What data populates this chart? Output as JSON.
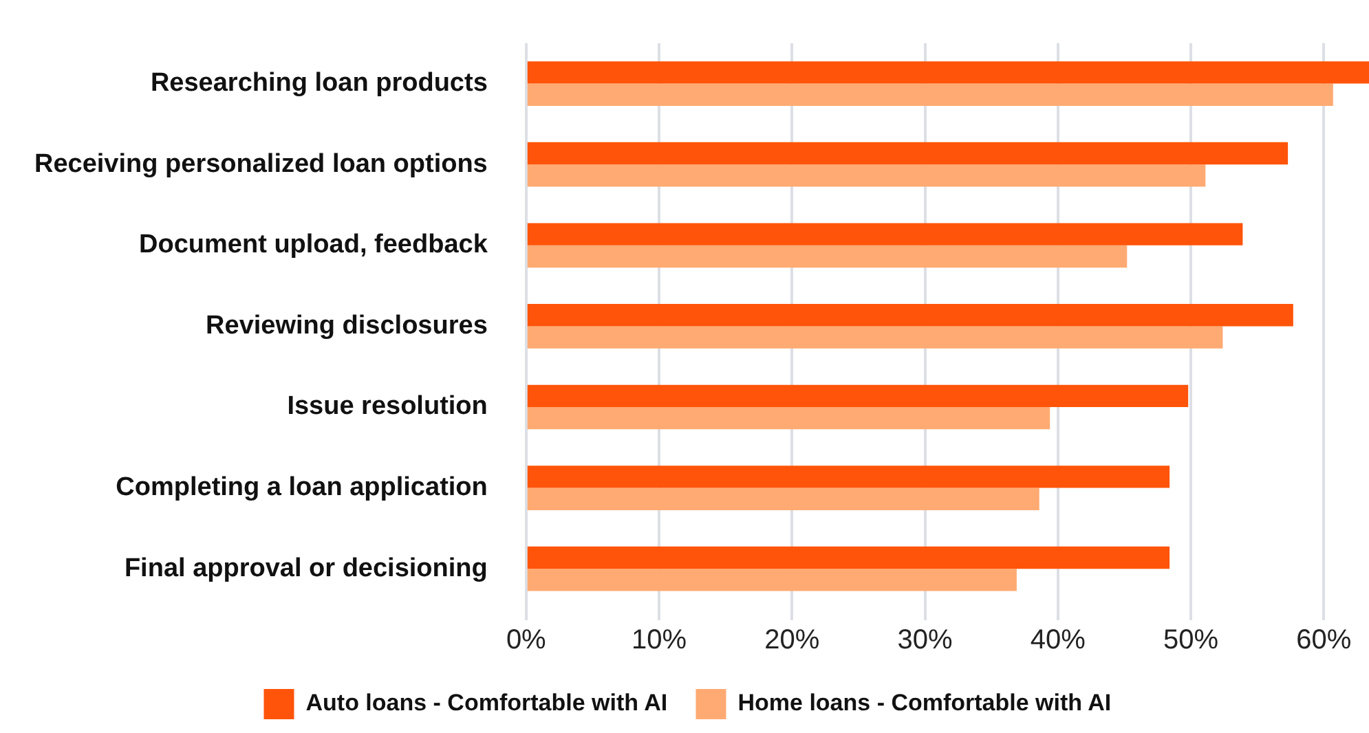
{
  "chart_data": {
    "type": "bar",
    "orientation": "horizontal",
    "categories": [
      "Researching loan products",
      "Receiving personalized loan options",
      "Document upload, feedback",
      "Reviewing disclosures",
      "Issue resolution",
      "Completing a loan application",
      "Final approval or decisioning"
    ],
    "series": [
      {
        "name": "Auto loans - Comfortable with AI",
        "color": "#ff5409",
        "values": [
          63.4,
          57.3,
          53.9,
          57.7,
          49.8,
          48.4,
          48.4
        ]
      },
      {
        "name": "Home loans - Comfortable with AI",
        "color": "#ffaa72",
        "values": [
          60.7,
          51.1,
          45.2,
          52.4,
          39.4,
          38.6,
          36.9
        ]
      }
    ],
    "xlim": [
      0,
      63.4
    ],
    "xticks": [
      {
        "value": 0,
        "label": "0%"
      },
      {
        "value": 10,
        "label": "10%"
      },
      {
        "value": 20,
        "label": "20%"
      },
      {
        "value": 30,
        "label": "30%"
      },
      {
        "value": 40,
        "label": "40%"
      },
      {
        "value": 50,
        "label": "50%"
      },
      {
        "value": 60,
        "label": "60%"
      }
    ],
    "grid": "x",
    "legend": "bottom"
  }
}
